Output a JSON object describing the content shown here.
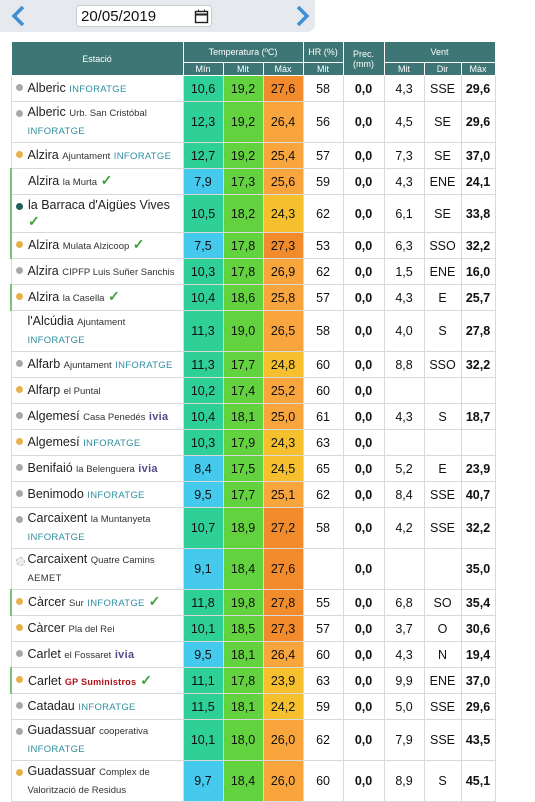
{
  "date": "20/05/2019",
  "headers": {
    "station": "Estació",
    "temperature": "Temperatura (ºC)",
    "humidity": "HR (%)",
    "precipitation": "Prec.\n(mm)",
    "wind": "Vent",
    "sub": [
      "Mín",
      "Mit",
      "Màx",
      "Mit",
      "Mit",
      "Dir",
      "Màx"
    ]
  },
  "rows": [
    {
      "station": "Alberic",
      "source": "INFORATGE",
      "marker": "#a8a8a8",
      "min": "10,6",
      "mit": "19,2",
      "max": "27,6",
      "hr": "58",
      "prec": "0,0",
      "wind_mit": "4,3",
      "wind_dir": "SSE",
      "wind_max": "29,6"
    },
    {
      "station": "Alberic",
      "place": "Urb. San Cristóbal",
      "source": "INFORATGE",
      "marker": "#a8a8a8",
      "min": "12,3",
      "mit": "19,2",
      "max": "26,4",
      "hr": "56",
      "prec": "0,0",
      "wind_mit": "4,5",
      "wind_dir": "SE",
      "wind_max": "29,6"
    },
    {
      "station": "Alzira",
      "place": "Ajuntament",
      "source": "INFORATGE",
      "marker": "#e8b04a",
      "min": "12,7",
      "mit": "19,2",
      "max": "25,4",
      "hr": "57",
      "prec": "0,0",
      "wind_mit": "7,3",
      "wind_dir": "SE",
      "wind_max": "37,0"
    },
    {
      "station": "Alzira",
      "place": "la Murta",
      "verified": true,
      "min": "7,9",
      "mit": "17,3",
      "max": "25,6",
      "hr": "59",
      "prec": "0,0",
      "wind_mit": "4,3",
      "wind_dir": "ENE",
      "wind_max": "24,1"
    },
    {
      "station": "la Barraca d'Aigües Vives",
      "verified": true,
      "marker": "#1f5f5b",
      "min": "10,5",
      "mit": "18,2",
      "max": "24,3",
      "hr": "62",
      "prec": "0,0",
      "wind_mit": "6,1",
      "wind_dir": "SE",
      "wind_max": "33,8"
    },
    {
      "station": "Alzira",
      "place": "Mulata Alzicoop",
      "verified": true,
      "marker": "#e8b04a",
      "min": "7,5",
      "mit": "17,8",
      "max": "27,3",
      "hr": "53",
      "prec": "0,0",
      "wind_mit": "6,3",
      "wind_dir": "SSO",
      "wind_max": "32,2"
    },
    {
      "station": "Alzira",
      "place": "CIPFP Luis Suñer Sanchis",
      "marker": "#a8a8a8",
      "min": "10,3",
      "mit": "17,8",
      "max": "26,9",
      "hr": "62",
      "prec": "0,0",
      "wind_mit": "1,5",
      "wind_dir": "ENE",
      "wind_max": "16,0"
    },
    {
      "station": "Alzira",
      "place": "la Casella",
      "verified": true,
      "marker": "#e8b04a",
      "min": "10,4",
      "mit": "18,6",
      "max": "25,8",
      "hr": "57",
      "prec": "0,0",
      "wind_mit": "4,3",
      "wind_dir": "E",
      "wind_max": "25,7"
    },
    {
      "station": "l'Alcúdia",
      "place": "Ajuntament",
      "source": "INFORATGE",
      "min": "11,3",
      "mit": "19,0",
      "max": "26,5",
      "hr": "58",
      "prec": "0,0",
      "wind_mit": "4,0",
      "wind_dir": "S",
      "wind_max": "27,8"
    },
    {
      "station": "Alfarb",
      "place": "Ajuntament",
      "source": "INFORATGE",
      "marker": "#a8a8a8",
      "min": "11,3",
      "mit": "17,7",
      "max": "24,8",
      "hr": "60",
      "prec": "0,0",
      "wind_mit": "8,8",
      "wind_dir": "SSO",
      "wind_max": "32,2"
    },
    {
      "station": "Alfarp",
      "place": "el Puntal",
      "marker": "#e8b04a",
      "min": "10,2",
      "mit": "17,4",
      "max": "25,2",
      "hr": "60",
      "prec": "0,0"
    },
    {
      "station": "Algemesí",
      "place": "Casa Penedés",
      "source": "ivia",
      "marker": "#a8a8a8",
      "min": "10,4",
      "mit": "18,1",
      "max": "25,0",
      "hr": "61",
      "prec": "0,0",
      "wind_mit": "4,3",
      "wind_dir": "S",
      "wind_max": "18,7"
    },
    {
      "station": "Algemesí",
      "source": "INFORATGE",
      "marker": "#e8b04a",
      "min": "10,3",
      "mit": "17,9",
      "max": "24,3",
      "hr": "63",
      "prec": "0,0"
    },
    {
      "station": "Benifaió",
      "place": "la Belenguera",
      "source": "ivia",
      "marker": "#a8a8a8",
      "min": "8,4",
      "mit": "17,5",
      "max": "24,5",
      "hr": "65",
      "prec": "0,0",
      "wind_mit": "5,2",
      "wind_dir": "E",
      "wind_max": "23,9"
    },
    {
      "station": "Benimodo",
      "source": "INFORATGE",
      "marker": "#a8a8a8",
      "min": "9,5",
      "mit": "17,7",
      "max": "25,1",
      "hr": "62",
      "prec": "0,0",
      "wind_mit": "8,4",
      "wind_dir": "SSE",
      "wind_max": "40,7"
    },
    {
      "station": "Carcaixent",
      "place": "la Muntanyeta",
      "source": "INFORATGE",
      "marker": "#a8a8a8",
      "min": "10,7",
      "mit": "18,9",
      "max": "27,2",
      "hr": "58",
      "prec": "0,0",
      "wind_mit": "4,2",
      "wind_dir": "SSE",
      "wind_max": "32,2"
    },
    {
      "station": "Carcaixent",
      "place": "Quatre Camins",
      "source": "AEMET",
      "marker": "#ececec",
      "min": "9,1",
      "mit": "18,4",
      "max": "27,6",
      "prec": "0,0",
      "wind_max": "35,0"
    },
    {
      "station": "Càrcer",
      "place": "Sur",
      "source": "INFORATGE",
      "verified": true,
      "marker": "#e8b04a",
      "min": "11,8",
      "mit": "19,8",
      "max": "27,8",
      "hr": "55",
      "prec": "0,0",
      "wind_mit": "6,8",
      "wind_dir": "SO",
      "wind_max": "35,4"
    },
    {
      "station": "Càrcer",
      "place": "Pla del Rei",
      "marker": "#e8b04a",
      "min": "10,1",
      "mit": "18,5",
      "max": "27,3",
      "hr": "57",
      "prec": "0,0",
      "wind_mit": "3,7",
      "wind_dir": "O",
      "wind_max": "30,6"
    },
    {
      "station": "Carlet",
      "place": "el Fossaret",
      "source": "ivia",
      "marker": "#a8a8a8",
      "min": "9,5",
      "mit": "18,1",
      "max": "26,4",
      "hr": "60",
      "prec": "0,0",
      "wind_mit": "4,3",
      "wind_dir": "N",
      "wind_max": "19,4"
    },
    {
      "station": "Carlet",
      "source": "GP Suministros",
      "verified": true,
      "marker": "#e8b04a",
      "min": "11,1",
      "mit": "17,8",
      "max": "23,9",
      "hr": "63",
      "prec": "0,0",
      "wind_mit": "9,9",
      "wind_dir": "ENE",
      "wind_max": "37,0"
    },
    {
      "station": "Catadau",
      "source": "INFORATGE",
      "marker": "#a8a8a8",
      "min": "11,5",
      "mit": "18,1",
      "max": "24,2",
      "hr": "59",
      "prec": "0,0",
      "wind_mit": "5,0",
      "wind_dir": "SSE",
      "wind_max": "29,6"
    },
    {
      "station": "Guadassuar",
      "place": "cooperativa",
      "source": "INFORATGE",
      "marker": "#a8a8a8",
      "min": "10,1",
      "mit": "18,0",
      "max": "26,0",
      "hr": "62",
      "prec": "0,0",
      "wind_mit": "7,9",
      "wind_dir": "SSE",
      "wind_max": "43,5"
    },
    {
      "station": "Guadassuar",
      "place": "Complex de Valorització de Residus",
      "marker": "#e8b04a",
      "min": "9,7",
      "mit": "18,4",
      "max": "26,0",
      "hr": "60",
      "prec": "0,0",
      "wind_mit": "8,9",
      "wind_dir": "S",
      "wind_max": "45,1"
    }
  ]
}
